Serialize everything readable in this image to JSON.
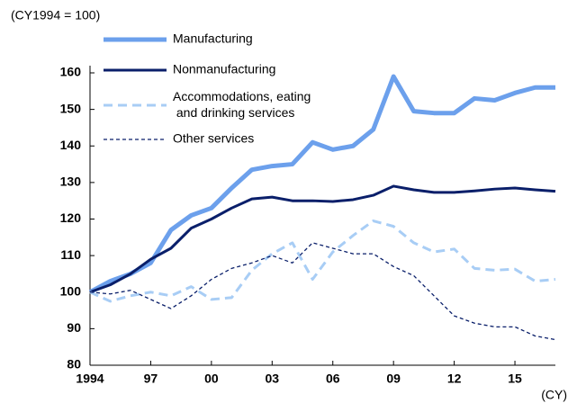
{
  "chart_data": {
    "type": "line",
    "y_label": "(CY1994 = 100)",
    "x_label": "(CY)",
    "x": [
      1994,
      1995,
      1996,
      1997,
      1998,
      1999,
      2000,
      2001,
      2002,
      2003,
      2004,
      2005,
      2006,
      2007,
      2008,
      2009,
      2010,
      2011,
      2012,
      2013,
      2014,
      2015,
      2016,
      2017
    ],
    "xlim": [
      1994,
      2017
    ],
    "xticks": [
      {
        "value": 1994,
        "label": "1994"
      },
      {
        "value": 1997,
        "label": "97"
      },
      {
        "value": 2000,
        "label": "00"
      },
      {
        "value": 2003,
        "label": "03"
      },
      {
        "value": 2006,
        "label": "06"
      },
      {
        "value": 2009,
        "label": "09"
      },
      {
        "value": 2012,
        "label": "12"
      },
      {
        "value": 2015,
        "label": "15"
      }
    ],
    "ylim": [
      80,
      160
    ],
    "yticks": [
      80,
      90,
      100,
      110,
      120,
      130,
      140,
      150,
      160
    ],
    "series": [
      {
        "name": "Manufacturing",
        "color": "#6ca0ec",
        "style": "solid",
        "width": 5,
        "values": [
          100,
          103,
          105,
          108,
          117,
          121,
          123,
          128.5,
          133.5,
          134.5,
          135,
          141,
          139,
          140,
          144.5,
          159,
          149.5,
          149,
          149,
          153,
          152.5,
          154.5,
          156,
          156
        ]
      },
      {
        "name": "Nonmanufacturing",
        "color": "#0a1f6a",
        "style": "solid",
        "width": 3,
        "values": [
          100,
          102,
          105,
          109,
          112,
          117.5,
          120,
          123,
          125.5,
          126,
          125,
          125,
          124.8,
          125.3,
          126.5,
          129,
          128,
          127.3,
          127.3,
          127.7,
          128.2,
          128.5,
          128,
          127.6
        ]
      },
      {
        "name": "Accommodations, eating\n and drinking services",
        "color": "#a8cdf5",
        "style": "dashed",
        "width": 3,
        "values": [
          100,
          97.5,
          99,
          100,
          99,
          101.5,
          98,
          98.5,
          106,
          110.5,
          113.5,
          103.5,
          111,
          115.5,
          119.5,
          118,
          113.5,
          111,
          111.8,
          106.5,
          106,
          106.3,
          103,
          103.5
        ]
      },
      {
        "name": "Other services",
        "color": "#0a1f6a",
        "style": "dashed",
        "width": 1.3,
        "values": [
          100,
          99.5,
          100.5,
          98,
          95.5,
          99,
          103.5,
          106.5,
          108,
          110,
          108,
          113.5,
          112,
          110.5,
          110.5,
          107,
          104.5,
          99,
          93.5,
          91.5,
          90.5,
          90.5,
          88,
          87
        ]
      }
    ]
  }
}
